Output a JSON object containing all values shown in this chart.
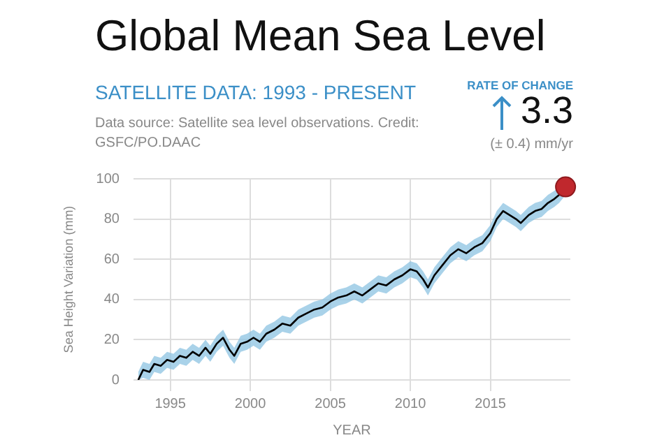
{
  "chart_data": {
    "type": "line",
    "title": "Global Mean Sea Level",
    "subtitle": "SATELLITE DATA: 1993 - PRESENT",
    "xlabel": "YEAR",
    "ylabel": "Sea Height Variation (mm)",
    "annotations": [
      "Data source: Satellite sea level observations. Credit: GSFC/PO.DAAC",
      "RATE OF CHANGE",
      "3.3",
      "(± 0.4) mm/yr"
    ],
    "xlim": [
      1992.7,
      2020
    ],
    "xticks": [
      1995,
      2000,
      2005,
      2010,
      2015
    ],
    "ylim": [
      0,
      100
    ],
    "yticks": [
      0,
      20,
      40,
      60,
      80,
      100
    ],
    "grid": true,
    "legend": false,
    "marker": "none",
    "line_style": "solid",
    "series": [
      {
        "type": "line",
        "color": "#000000",
        "x": [
          1993.0,
          1993.3,
          1993.7,
          1994.0,
          1994.4,
          1994.8,
          1995.2,
          1995.6,
          1996.0,
          1996.4,
          1996.8,
          1997.2,
          1997.5,
          1997.9,
          1998.3,
          1998.7,
          1999.0,
          1999.4,
          1999.8,
          2000.2,
          2000.6,
          2001.0,
          2001.5,
          2002.0,
          2002.5,
          2003.0,
          2003.5,
          2004.0,
          2004.5,
          2005.0,
          2005.5,
          2006.0,
          2006.5,
          2007.0,
          2007.5,
          2008.0,
          2008.5,
          2009.0,
          2009.5,
          2010.0,
          2010.4,
          2010.8,
          2011.1,
          2011.5,
          2012.0,
          2012.5,
          2013.0,
          2013.5,
          2014.0,
          2014.5,
          2015.0,
          2015.4,
          2015.8,
          2016.2,
          2016.6,
          2016.9,
          2017.4,
          2017.8,
          2018.2,
          2018.6,
          2019.0,
          2019.3,
          2019.6
        ],
        "values": [
          0,
          5,
          4,
          8,
          7,
          10,
          9,
          12,
          11,
          14,
          12,
          16,
          13,
          18,
          21,
          15,
          12,
          18,
          19,
          21,
          19,
          23,
          25,
          28,
          27,
          31,
          33,
          35,
          36,
          39,
          41,
          42,
          44,
          42,
          45,
          48,
          47,
          50,
          52,
          55,
          54,
          50,
          46,
          52,
          57,
          62,
          65,
          63,
          66,
          68,
          73,
          80,
          84,
          82,
          80,
          78,
          82,
          84,
          85,
          88,
          90,
          92,
          95
        ],
        "lower": [
          0,
          1,
          0,
          4,
          3,
          6,
          5,
          8,
          7,
          10,
          8,
          12,
          9,
          14,
          17,
          11,
          8,
          14,
          15,
          17,
          15,
          19,
          21,
          24,
          23,
          27,
          29,
          31,
          32,
          35,
          37,
          38,
          40,
          38,
          41,
          44,
          43,
          46,
          48,
          51,
          50,
          46,
          42,
          48,
          53,
          58,
          61,
          59,
          62,
          64,
          69,
          76,
          80,
          78,
          76,
          74,
          78,
          80,
          81,
          84,
          86,
          88,
          91
        ],
        "upper": [
          4,
          9,
          8,
          12,
          11,
          14,
          13,
          16,
          15,
          18,
          16,
          20,
          17,
          22,
          25,
          19,
          16,
          22,
          23,
          25,
          23,
          27,
          29,
          32,
          31,
          35,
          37,
          39,
          40,
          43,
          45,
          46,
          48,
          46,
          49,
          52,
          51,
          54,
          56,
          59,
          58,
          54,
          50,
          56,
          61,
          66,
          69,
          67,
          70,
          72,
          77,
          84,
          88,
          86,
          84,
          82,
          86,
          88,
          89,
          92,
          94,
          96,
          99
        ]
      },
      {
        "type": "scatter",
        "color": "#c0282d",
        "marker": "circle",
        "x": [
          2019.7
        ],
        "values": [
          96
        ]
      }
    ]
  }
}
